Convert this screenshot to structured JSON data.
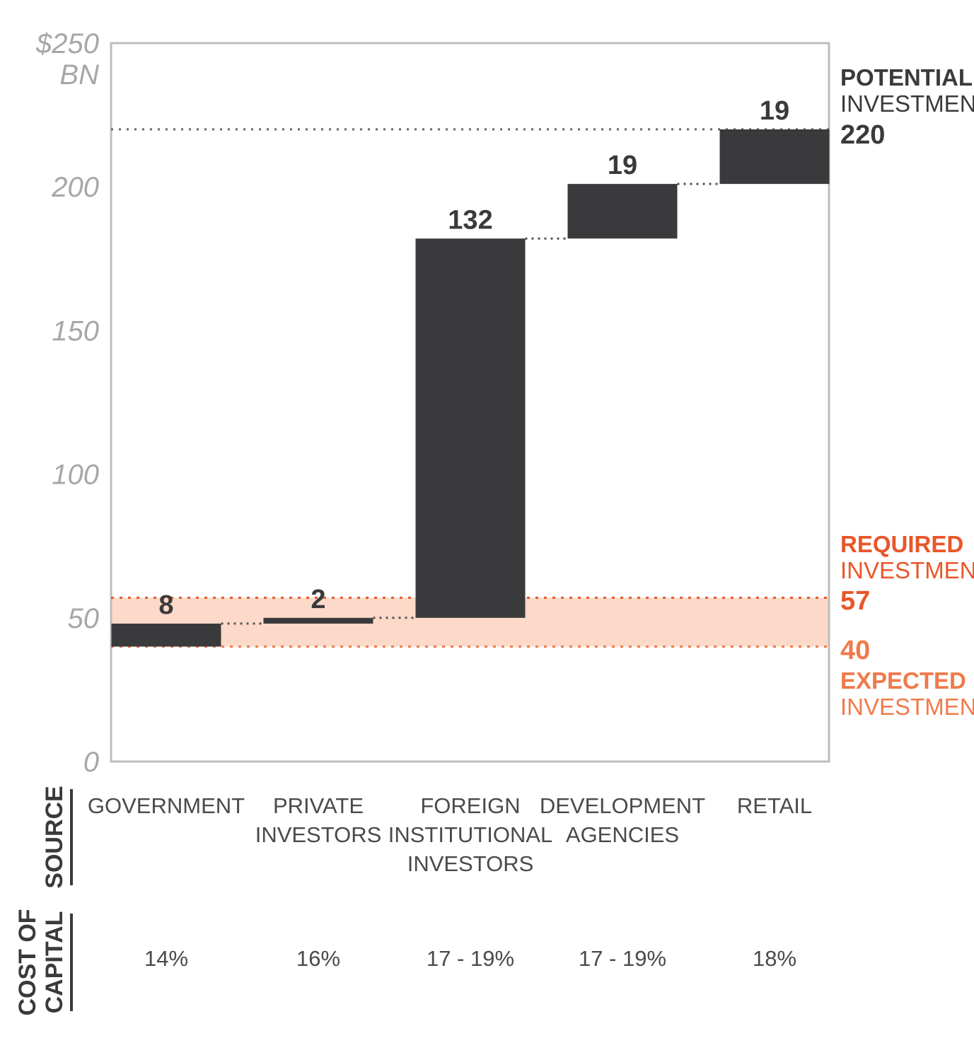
{
  "chart_data": {
    "type": "bar",
    "subtype": "waterfall",
    "y_unit": "BN",
    "ylim": [
      0,
      250
    ],
    "yticks": [
      "$250",
      "200",
      "150",
      "100",
      "50",
      "0"
    ],
    "ytick_values": [
      250,
      200,
      150,
      100,
      50,
      0
    ],
    "categories": [
      [
        "GOVERNMENT"
      ],
      [
        "PRIVATE",
        "INVESTORS"
      ],
      [
        "FOREIGN",
        "INSTITUTIONAL",
        "INVESTORS"
      ],
      [
        "DEVELOPMENT",
        "AGENCIES"
      ],
      [
        "RETAIL"
      ]
    ],
    "values": [
      8,
      2,
      132,
      19,
      19
    ],
    "value_labels": [
      "8",
      "2",
      "132",
      "19",
      "19"
    ],
    "base": 40,
    "cost_of_capital": [
      "14%",
      "16%",
      "17 - 19%",
      "17 - 19%",
      "18%"
    ],
    "row_labels": {
      "source": "SOURCE",
      "cost_line1": "COST OF",
      "cost_line2": "CAPITAL"
    },
    "reference_lines": {
      "potential": {
        "value": 220,
        "label_bold": "POTENTIAL",
        "label": "INVESTMENT",
        "value_label": "220",
        "color": "#3a3a3c"
      },
      "required": {
        "value": 57,
        "label_bold": "REQUIRED",
        "label": "INVESTMENT",
        "value_label": "57",
        "color": "#e8562a"
      },
      "expected": {
        "value": 40,
        "label_bold": "EXPECTED",
        "label": "INVESTMENT",
        "value_label": "40",
        "color": "#f07a4a"
      }
    },
    "colors": {
      "bar": "#3a3a3c",
      "band": "#fcd9c8",
      "axis": "#bdbdbd",
      "connector": "#555555"
    }
  }
}
